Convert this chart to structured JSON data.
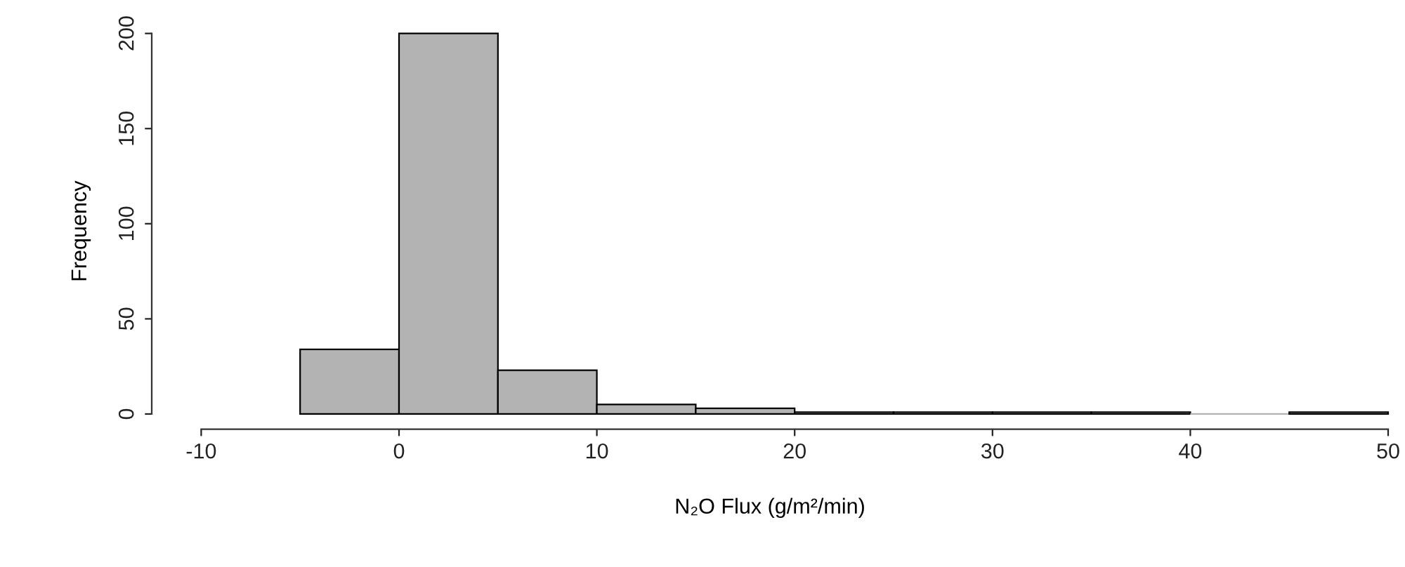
{
  "chart_data": {
    "type": "histogram",
    "xlabel": "N₂O Flux (g/m²/min)",
    "ylabel": "Frequency",
    "bins": [
      -5,
      0,
      5,
      10,
      15,
      20,
      25,
      30,
      35,
      40,
      45,
      50
    ],
    "values": [
      34,
      200,
      23,
      5,
      3,
      1,
      1,
      1,
      1,
      0,
      1
    ],
    "color": "#b3b3b3",
    "xlim": [
      -12.5,
      50
    ],
    "xticks": [
      -10,
      0,
      10,
      20,
      30,
      40,
      50
    ],
    "ylim": [
      -8,
      200
    ],
    "yticks": [
      0,
      50,
      100,
      150,
      200
    ],
    "grid": false
  }
}
